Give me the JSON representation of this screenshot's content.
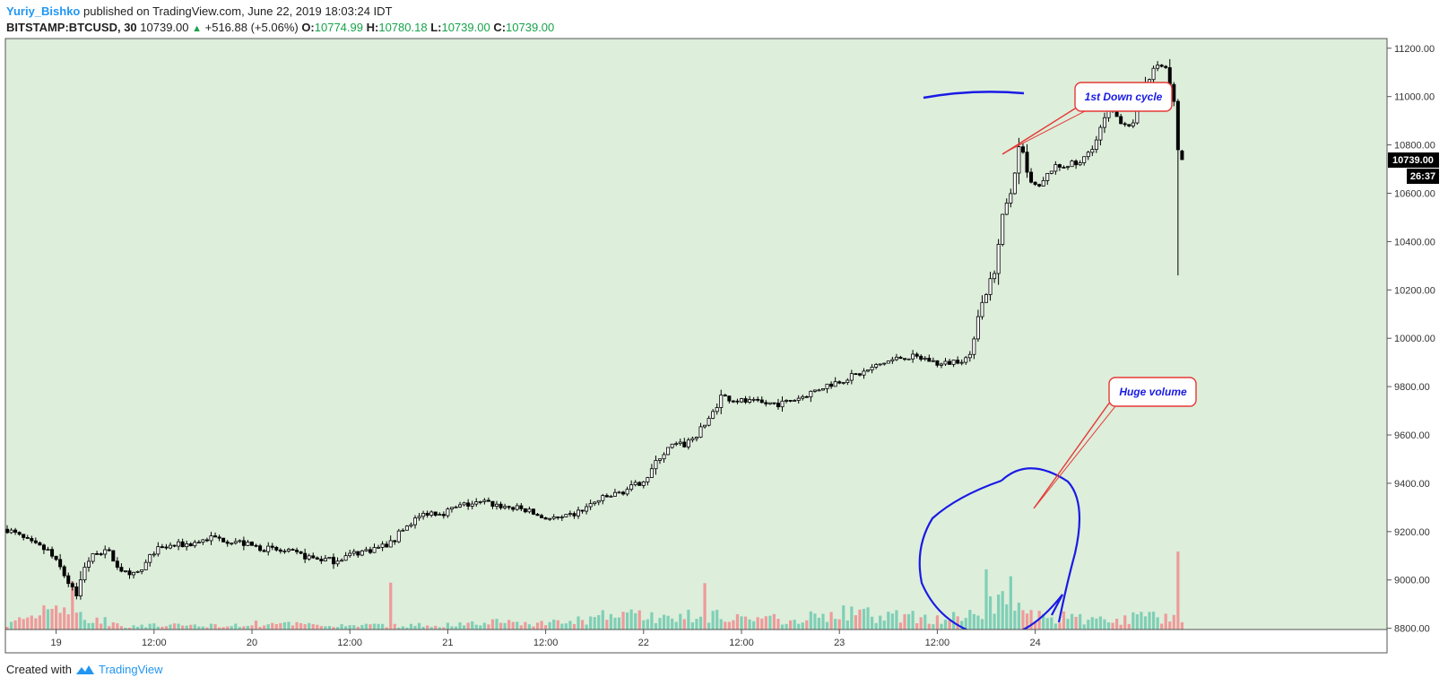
{
  "header": {
    "author": "Yuriy_Bishko",
    "published": " published on TradingView.com, June 22, 2019 18:03:24 IDT",
    "symbol": "BITSTAMP:BTCUSD, 30",
    "last": " 10739.00 ",
    "change": "+516.88 (+5.06%)",
    "o_label": " O:",
    "o_value": "10774.99",
    "h_label": " H:",
    "h_value": "10780.18",
    "l_label": " L:",
    "l_value": "10739.00",
    "c_label": " C:",
    "c_value": "10739.00"
  },
  "footer": {
    "created_with": "Created with",
    "brand": "TradingView"
  },
  "colors": {
    "background": "#ddeedb",
    "candle_up_fill": "#ffffff",
    "candle_down_fill": "#000000",
    "volume_up": "#7fcfb6",
    "volume_down": "#ef9a9a",
    "annotation_blue": "#1a1ae6",
    "annotation_red": "#e53935"
  },
  "annotations": {
    "down_cycle": "1st Down cycle",
    "huge_volume": "Huge volume"
  },
  "price_label": "10739.00",
  "countdown": "26:37",
  "chart_data": {
    "type": "candlestick",
    "title": "BITSTAMP:BTCUSD, 30",
    "interval": "30",
    "x_tick_labels": [
      "19",
      "12:00",
      "20",
      "12:00",
      "21",
      "12:00",
      "22",
      "12:00",
      "23",
      "12:00",
      "24"
    ],
    "y_tick_labels": [
      "11200.00",
      "11000.00",
      "10800.00",
      "10600.00",
      "10400.00",
      "10200.00",
      "10000.00",
      "9800.00",
      "9600.00",
      "9400.00",
      "9200.00",
      "9000.00",
      "8800.00"
    ],
    "ylim": [
      8795,
      11240
    ],
    "x_start": "18 Jun 18:00",
    "x_end": "24 Jun 12:00",
    "bars_per_day": 48,
    "grid": false,
    "candles_price_path": [
      [
        0,
        9210
      ],
      [
        6,
        9150
      ],
      [
        10,
        9120
      ],
      [
        13,
        9050
      ],
      [
        15,
        8990
      ],
      [
        17,
        8930
      ],
      [
        19,
        9060
      ],
      [
        22,
        9120
      ],
      [
        25,
        9110
      ],
      [
        27,
        9060
      ],
      [
        30,
        9010
      ],
      [
        33,
        9040
      ],
      [
        36,
        9120
      ],
      [
        40,
        9140
      ],
      [
        45,
        9150
      ],
      [
        50,
        9175
      ],
      [
        56,
        9160
      ],
      [
        60,
        9140
      ],
      [
        65,
        9125
      ],
      [
        70,
        9110
      ],
      [
        75,
        9090
      ],
      [
        80,
        9080
      ],
      [
        85,
        9110
      ],
      [
        90,
        9130
      ],
      [
        94,
        9150
      ],
      [
        96,
        9190
      ],
      [
        99,
        9240
      ],
      [
        103,
        9280
      ],
      [
        107,
        9280
      ],
      [
        112,
        9310
      ],
      [
        117,
        9320
      ],
      [
        123,
        9300
      ],
      [
        127,
        9290
      ],
      [
        131,
        9260
      ],
      [
        136,
        9250
      ],
      [
        140,
        9280
      ],
      [
        145,
        9330
      ],
      [
        150,
        9360
      ],
      [
        154,
        9390
      ],
      [
        157,
        9430
      ],
      [
        160,
        9510
      ],
      [
        163,
        9555
      ],
      [
        166,
        9560
      ],
      [
        169,
        9600
      ],
      [
        172,
        9660
      ],
      [
        175,
        9760
      ],
      [
        180,
        9740
      ],
      [
        185,
        9730
      ],
      [
        190,
        9730
      ],
      [
        195,
        9760
      ],
      [
        200,
        9800
      ],
      [
        205,
        9830
      ],
      [
        210,
        9860
      ],
      [
        215,
        9900
      ],
      [
        220,
        9925
      ],
      [
        225,
        9915
      ],
      [
        229,
        9890
      ],
      [
        233,
        9910
      ],
      [
        236,
        9920
      ],
      [
        238,
        10100
      ],
      [
        240,
        10190
      ],
      [
        242,
        10280
      ],
      [
        244,
        10500
      ],
      [
        246,
        10600
      ],
      [
        248,
        10780
      ],
      [
        249,
        10760
      ],
      [
        250,
        10680
      ],
      [
        251,
        10640
      ],
      [
        253,
        10620
      ],
      [
        256,
        10700
      ],
      [
        260,
        10720
      ],
      [
        263,
        10720
      ],
      [
        267,
        10820
      ],
      [
        270,
        10950
      ],
      [
        273,
        10900
      ],
      [
        276,
        10880
      ],
      [
        279,
        11060
      ],
      [
        282,
        11130
      ],
      [
        284,
        11120
      ],
      [
        285,
        11050
      ],
      [
        286,
        10940
      ],
      [
        287,
        10780
      ],
      [
        288,
        10739
      ]
    ],
    "big_candles": [
      {
        "i": 286,
        "o": 11050,
        "h": 11060,
        "l": 10960,
        "c": 10980
      },
      {
        "i": 287,
        "o": 10980,
        "h": 10990,
        "l": 10260,
        "c": 10780
      },
      {
        "i": 288,
        "o": 10774.99,
        "h": 10780.18,
        "l": 10739.0,
        "c": 10739.0
      }
    ],
    "volume_path": [
      [
        0,
        0.1
      ],
      [
        3,
        0.25
      ],
      [
        7,
        0.35
      ],
      [
        11,
        0.8
      ],
      [
        15,
        0.55
      ],
      [
        19,
        0.3
      ],
      [
        23,
        0.25
      ],
      [
        28,
        0.1
      ],
      [
        35,
        0.1
      ],
      [
        50,
        0.1
      ],
      [
        62,
        0.15
      ],
      [
        72,
        0.12
      ],
      [
        80,
        0.1
      ],
      [
        95,
        0.1
      ],
      [
        110,
        0.12
      ],
      [
        120,
        0.2
      ],
      [
        130,
        0.15
      ],
      [
        140,
        0.22
      ],
      [
        150,
        0.4
      ],
      [
        160,
        0.3
      ],
      [
        175,
        0.35
      ],
      [
        190,
        0.25
      ],
      [
        205,
        0.4
      ],
      [
        215,
        0.35
      ],
      [
        225,
        0.3
      ],
      [
        234,
        0.3
      ],
      [
        238,
        0.4
      ],
      [
        243,
        0.75
      ],
      [
        250,
        0.35
      ],
      [
        260,
        0.3
      ],
      [
        270,
        0.2
      ],
      [
        280,
        0.35
      ],
      [
        284,
        0.3
      ],
      [
        288,
        0.25
      ]
    ],
    "volume_spikes": [
      {
        "i": 16,
        "v": 0.98,
        "up": false
      },
      {
        "i": 94,
        "v": 0.95,
        "up": false
      },
      {
        "i": 171,
        "v": 0.94,
        "up": false
      },
      {
        "i": 240,
        "v": 1.22,
        "up": true
      },
      {
        "i": 246,
        "v": 1.08,
        "up": true
      },
      {
        "i": 287,
        "v": 1.58,
        "up": false
      }
    ],
    "last_price": 10739.0
  }
}
